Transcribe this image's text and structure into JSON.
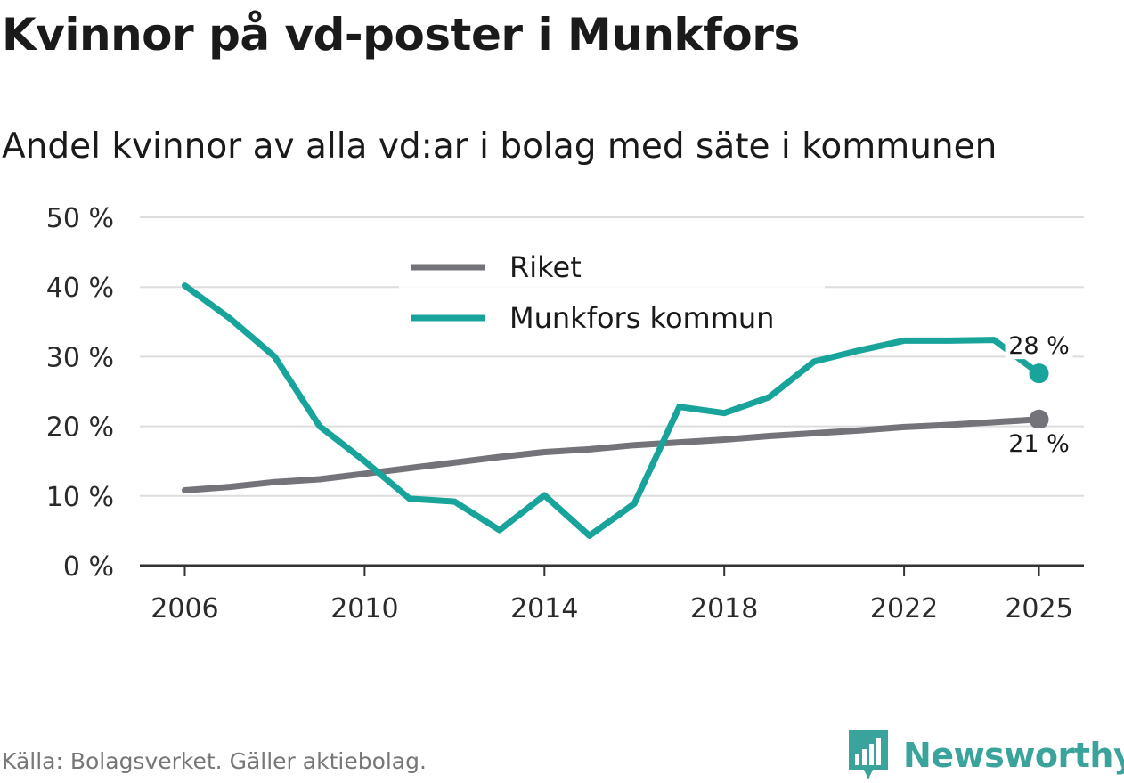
{
  "title": "Kvinnor på vd-poster i Munkfors",
  "subtitle": "Andel kvinnor av alla vd:ar i bolag med säte i kommunen",
  "source": "Källa: Bolagsverket. Gäller aktiebolag.",
  "brand": {
    "name": "Newsworthy",
    "icon": "newsworthy-logo-icon"
  },
  "colors": {
    "riket": "#747379",
    "munkfors": "#18a39b",
    "grid": "#dddddd",
    "axis": "#333333"
  },
  "chart_data": {
    "type": "line",
    "x": [
      2006,
      2007,
      2008,
      2009,
      2010,
      2011,
      2012,
      2013,
      2014,
      2015,
      2016,
      2017,
      2018,
      2019,
      2020,
      2021,
      2022,
      2023,
      2024,
      2025
    ],
    "xticks": [
      2006,
      2010,
      2014,
      2018,
      2022,
      2025
    ],
    "xlim": [
      2005,
      2026
    ],
    "ylim": [
      0,
      50
    ],
    "yticks": [
      0,
      10,
      20,
      30,
      40,
      50
    ],
    "ytick_labels": [
      "0 %",
      "10 %",
      "20 %",
      "30 %",
      "40 %",
      "50 %"
    ],
    "grid": true,
    "legend": "top-center",
    "series": [
      {
        "name": "Riket",
        "color": "#747379",
        "values": [
          10.8,
          11.3,
          12.0,
          12.4,
          13.2,
          14.0,
          14.8,
          15.6,
          16.3,
          16.7,
          17.3,
          17.7,
          18.1,
          18.6,
          19.0,
          19.4,
          19.9,
          20.2,
          20.6,
          21.0
        ],
        "end_label": "21 %"
      },
      {
        "name": "Munkfors kommun",
        "color": "#18a39b",
        "values": [
          40.2,
          35.5,
          30.0,
          20.0,
          15.0,
          9.6,
          9.2,
          5.1,
          10.1,
          4.3,
          8.9,
          22.8,
          21.9,
          24.2,
          29.3,
          30.9,
          32.3,
          32.3,
          32.4,
          27.6
        ],
        "end_label": "28 %"
      }
    ]
  }
}
